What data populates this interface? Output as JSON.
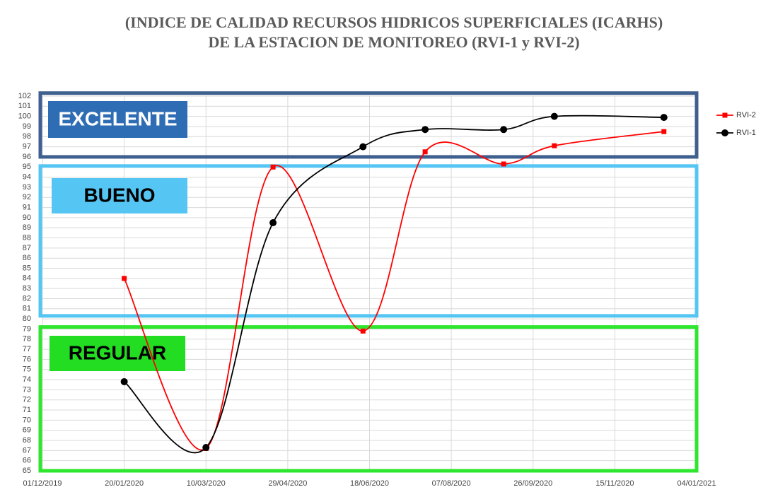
{
  "chart_data": {
    "type": "line",
    "title": [
      "(INDICE DE CALIDAD RECURSOS HIDRICOS SUPERFICIALES (ICARHS)",
      "DE LA ESTACION DE MONITOREO (RVI-1  y RVI-2)"
    ],
    "x": [
      "20/01/2020",
      "10/03/2020",
      "20/04/2020",
      "14/06/2020",
      "22/07/2020",
      "08/09/2020",
      "09/10/2020",
      "15/12/2020"
    ],
    "series": [
      {
        "name": "RVI-2",
        "color": "#ff0000",
        "values": [
          84,
          67.2,
          95,
          78.8,
          96.5,
          95.3,
          97.1,
          98.5
        ]
      },
      {
        "name": "RVI-1",
        "color": "#000000",
        "values": [
          73.8,
          67.3,
          89.5,
          97,
          98.7,
          98.7,
          100,
          99.9
        ]
      }
    ],
    "xlim": [
      "01/12/2019",
      "04/01/2021"
    ],
    "xticks": [
      "01/12/2019",
      "20/01/2020",
      "10/03/2020",
      "29/04/2020",
      "18/06/2020",
      "07/08/2020",
      "26/09/2020",
      "15/11/2020",
      "04/01/2021"
    ],
    "ylim": [
      65,
      102
    ],
    "yticks": [
      65,
      66,
      67,
      68,
      69,
      70,
      71,
      72,
      73,
      74,
      75,
      76,
      77,
      78,
      79,
      80,
      81,
      82,
      83,
      84,
      85,
      86,
      87,
      88,
      89,
      90,
      91,
      92,
      93,
      94,
      95,
      96,
      97,
      98,
      99,
      100,
      101,
      102
    ],
    "grid": true,
    "legend": "right",
    "zones": [
      {
        "label": "EXCELENTE",
        "from": 96,
        "to": 102.3,
        "color": "#3f5f8f",
        "fill": "#2e6db4",
        "text": "#ffffff"
      },
      {
        "label": "BUENO",
        "from": 80.3,
        "to": 95.1,
        "color": "#55c6f3",
        "fill": "#55c6f3",
        "text": "#000000"
      },
      {
        "label": "REGULAR",
        "from": 65,
        "to": 79.2,
        "color": "#2ee62e",
        "fill": "#22dd22",
        "text": "#000000"
      }
    ]
  }
}
